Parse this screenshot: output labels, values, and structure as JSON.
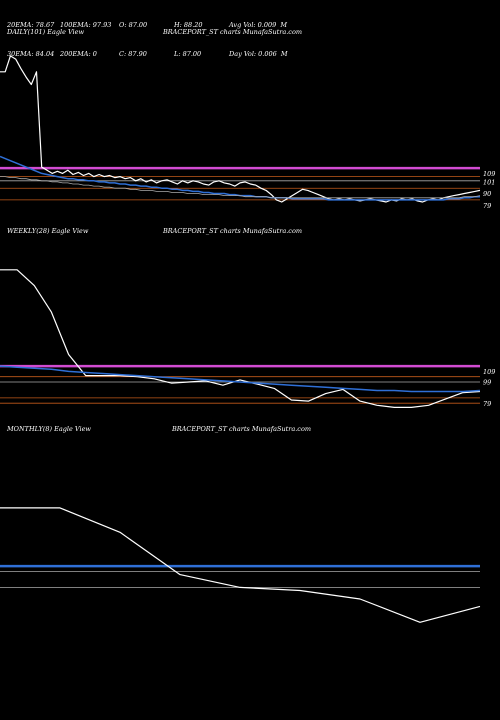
{
  "stats": {
    "row1": [
      "20EMA: 78.67",
      "100EMA: 97.93",
      "O: 87.00",
      "H: 88.20",
      "Avg Vol: 0.009  M"
    ],
    "row2": [
      "30EMA: 84.04",
      "200EMA: 0",
      "C: 87.90",
      "L: 87.00",
      "Day Vol: 0.006  M"
    ]
  },
  "panels": {
    "daily": {
      "left_title": "DAILY(101) Eagle   View",
      "center_title": "BRACEPORT_ST charts MunafaSutra.com"
    },
    "weekly": {
      "left_title": "WEEKLY(28) Eagle   View",
      "center_title": "BRACEPORT_ST charts MunafaSutra.com"
    },
    "monthly": {
      "left_title": "MONTHLY(8) Eagle   View",
      "center_title": "BRACEPORT_ST charts MunafaSutra.com"
    }
  },
  "colors": {
    "price": "#ffffff",
    "ema": "#2f6fd6",
    "magenta": "#d24bd2",
    "orange": "#c25a1a",
    "grey": "#aaaaaa"
  },
  "chart_data": [
    {
      "type": "line",
      "panel": "daily",
      "ylim": [
        60,
        230
      ],
      "y_tick_labels": [
        "109",
        "101",
        "90",
        "79"
      ],
      "horizontal_levels": [
        {
          "value": 109,
          "color": "#d24bd2"
        },
        {
          "value": 101,
          "color": "#c25a1a"
        },
        {
          "value": 97,
          "color": "#aaaaaa"
        },
        {
          "value": 90,
          "color": "#c25a1a"
        },
        {
          "value": 79,
          "color": "#c25a1a"
        }
      ],
      "series": [
        {
          "role": "price",
          "values": [
            200,
            200,
            215,
            212,
            203,
            195,
            188,
            200,
            110,
            107,
            104,
            106,
            104,
            107,
            103,
            105,
            102,
            104,
            101,
            103,
            101,
            102,
            100,
            101,
            99,
            100,
            97,
            99,
            96,
            98,
            95,
            97,
            98,
            96,
            94,
            97,
            95,
            97,
            96,
            94,
            93,
            96,
            97,
            95,
            94,
            92,
            95,
            96,
            94,
            93,
            90,
            88,
            84,
            79,
            77,
            80,
            83,
            86,
            89,
            88,
            86,
            84,
            82,
            80,
            79,
            80,
            79,
            80,
            79,
            78,
            79,
            80,
            79,
            78,
            77,
            79,
            78,
            80,
            79,
            80,
            78,
            77,
            79,
            80,
            79,
            81,
            82,
            83,
            84,
            85,
            86,
            87,
            88
          ]
        },
        {
          "role": "ema",
          "values": [
            120,
            118,
            116,
            114,
            112,
            110,
            108,
            106,
            104,
            103,
            102,
            101,
            100,
            99,
            99,
            98,
            98,
            97,
            97,
            96,
            96,
            95,
            95,
            94,
            94,
            93,
            93,
            92,
            92,
            91,
            91,
            90,
            90,
            89,
            89,
            88,
            88,
            87,
            87,
            86,
            86,
            85,
            85,
            85,
            84,
            84,
            83,
            83,
            83,
            82,
            82,
            82,
            81,
            81,
            81,
            81,
            80,
            80,
            80,
            80,
            80,
            80,
            80,
            79,
            79,
            79,
            79,
            79,
            79,
            79,
            79,
            79,
            79,
            79,
            79,
            79,
            79,
            79,
            79,
            79,
            79,
            79,
            79,
            79,
            79,
            79,
            80,
            80,
            80,
            81,
            81,
            82,
            82
          ]
        },
        {
          "role": "ema2",
          "values": [
            101,
            101,
            100,
            100,
            99,
            99,
            98,
            98,
            97,
            97,
            96,
            96,
            95,
            95,
            94,
            94,
            93,
            93,
            92,
            92,
            91,
            91,
            90,
            90,
            90,
            89,
            89,
            88,
            88,
            88,
            87,
            87,
            87,
            86,
            86,
            86,
            85,
            85,
            85,
            84,
            84,
            84,
            84,
            83,
            83,
            83,
            83,
            82,
            82,
            82,
            82,
            82,
            81,
            81,
            81,
            81,
            81,
            81,
            81,
            81,
            81,
            81,
            81,
            81,
            81,
            81,
            81,
            81,
            81,
            81,
            81,
            81,
            81,
            81,
            81,
            81,
            81,
            81,
            81,
            81,
            81,
            81,
            81,
            81,
            81,
            81,
            81,
            81,
            81,
            82,
            82,
            82,
            83
          ]
        }
      ]
    },
    {
      "type": "line",
      "panel": "weekly",
      "ylim": [
        60,
        230
      ],
      "y_tick_labels": [
        "109",
        "99",
        "79"
      ],
      "horizontal_levels": [
        {
          "value": 109,
          "color": "#d24bd2"
        },
        {
          "value": 99,
          "color": "#c25a1a"
        },
        {
          "value": 94,
          "color": "#aaaaaa"
        },
        {
          "value": 79,
          "color": "#c25a1a"
        },
        {
          "value": 74,
          "color": "#c25a1a"
        }
      ],
      "series": [
        {
          "role": "price",
          "values": [
            200,
            200,
            185,
            160,
            120,
            100,
            100,
            100,
            99,
            97,
            93,
            94,
            95,
            91,
            96,
            92,
            88,
            77,
            76,
            83,
            87,
            76,
            72,
            70,
            70,
            72,
            78,
            84,
            85
          ]
        },
        {
          "role": "ema",
          "values": [
            109,
            108,
            107,
            106,
            104,
            103,
            102,
            101,
            100,
            99,
            98,
            97,
            96,
            95,
            94,
            93,
            92,
            91,
            90,
            89,
            88,
            87,
            86,
            86,
            85,
            85,
            85,
            85,
            86
          ]
        }
      ]
    },
    {
      "type": "line",
      "panel": "monthly",
      "ylim": [
        60,
        230
      ],
      "y_tick_labels": [],
      "horizontal_levels": [
        {
          "value": 108,
          "color": "#2f6fd6"
        },
        {
          "value": 103,
          "color": "#aaaaaa"
        },
        {
          "value": 88,
          "color": "#aaaaaa"
        }
      ],
      "series": [
        {
          "role": "price",
          "values": [
            163,
            163,
            140,
            100,
            88,
            85,
            77,
            55,
            70
          ]
        }
      ]
    }
  ]
}
